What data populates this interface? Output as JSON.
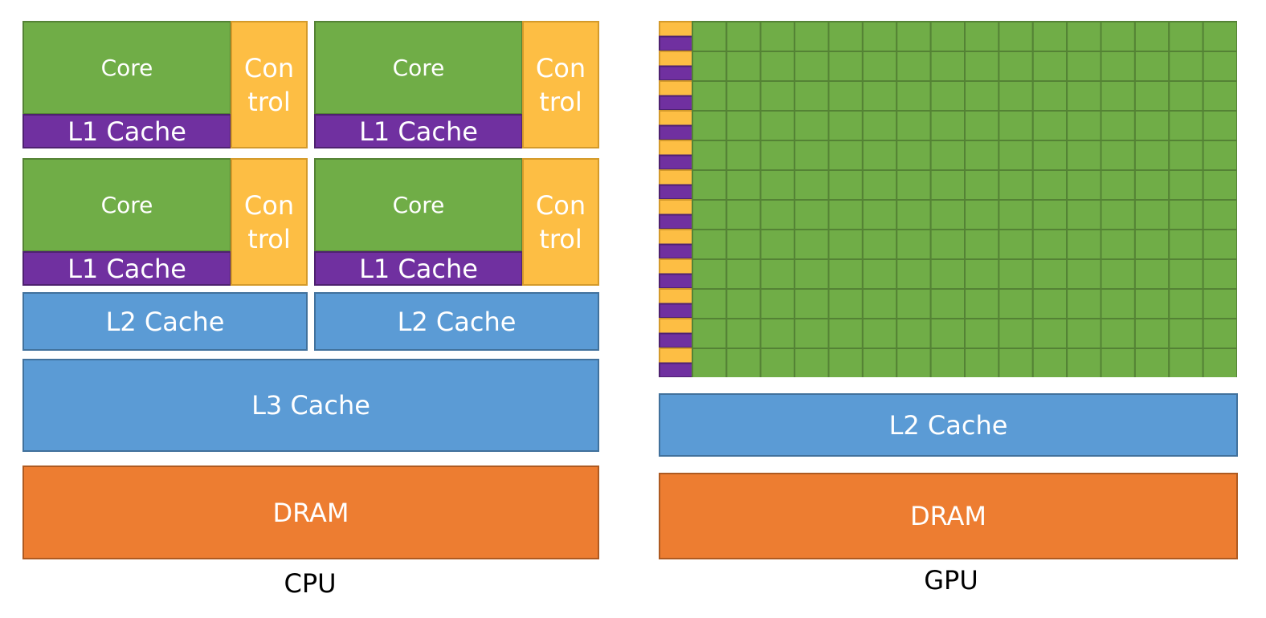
{
  "cpu": {
    "cores": [
      {
        "core": "Core",
        "l1": "L1 Cache",
        "control": [
          "Con",
          "trol"
        ]
      },
      {
        "core": "Core",
        "l1": "L1 Cache",
        "control": [
          "Con",
          "trol"
        ]
      },
      {
        "core": "Core",
        "l1": "L1 Cache",
        "control": [
          "Con",
          "trol"
        ]
      },
      {
        "core": "Core",
        "l1": "L1 Cache",
        "control": [
          "Con",
          "trol"
        ]
      }
    ],
    "l2": [
      "L2 Cache",
      "L2 Cache"
    ],
    "l3": "L3 Cache",
    "dram": "DRAM",
    "label": "CPU"
  },
  "gpu": {
    "l2": "L2 Cache",
    "dram": "DRAM",
    "label": "GPU"
  }
}
